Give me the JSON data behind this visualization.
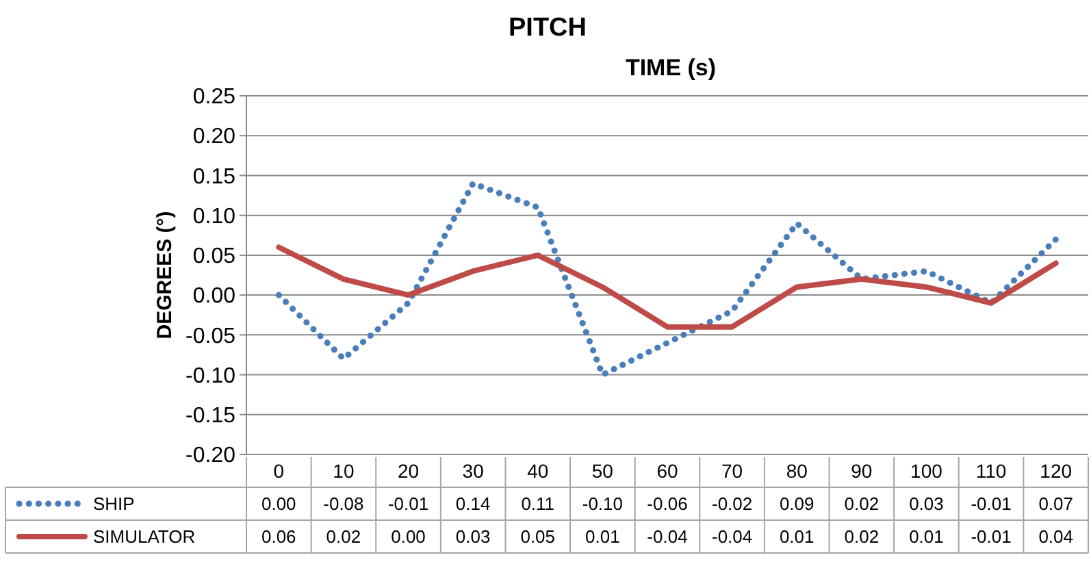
{
  "chart_data": {
    "type": "line",
    "title": "PITCH",
    "xlabel": "TIME (s)",
    "ylabel": "DEGREES (°)",
    "categories": [
      "0",
      "10",
      "20",
      "30",
      "40",
      "50",
      "60",
      "70",
      "80",
      "90",
      "100",
      "110",
      "120"
    ],
    "series": [
      {
        "name": "SHIP",
        "color": "#4a7ebb",
        "line_style": "dotted",
        "values": [
          0.0,
          -0.08,
          -0.01,
          0.14,
          0.11,
          -0.1,
          -0.06,
          -0.02,
          0.09,
          0.02,
          0.03,
          -0.01,
          0.07
        ],
        "value_labels": [
          "0.00",
          "-0.08",
          "-0.01",
          "0.14",
          "0.11",
          "-0.10",
          "-0.06",
          "-0.02",
          "0.09",
          "0.02",
          "0.03",
          "-0.01",
          "0.07"
        ]
      },
      {
        "name": "SIMULATOR",
        "color": "#be4b48",
        "line_style": "solid",
        "values": [
          0.06,
          0.02,
          0.0,
          0.03,
          0.05,
          0.01,
          -0.04,
          -0.04,
          0.01,
          0.02,
          0.01,
          -0.01,
          0.04
        ],
        "value_labels": [
          "0.06",
          "0.02",
          "0.00",
          "0.03",
          "0.05",
          "0.01",
          "-0.04",
          "-0.04",
          "0.01",
          "0.02",
          "0.01",
          "-0.01",
          "0.04"
        ]
      }
    ],
    "ylim": [
      -0.2,
      0.25
    ],
    "yticks": [
      {
        "value": -0.2,
        "label": "-0.20"
      },
      {
        "value": -0.15,
        "label": "-0.15"
      },
      {
        "value": -0.1,
        "label": "-0.10"
      },
      {
        "value": -0.05,
        "label": "-0.05"
      },
      {
        "value": 0,
        "label": "0.00"
      },
      {
        "value": 0.05,
        "label": "0.05"
      },
      {
        "value": 0.1,
        "label": "0.10"
      },
      {
        "value": 0.15,
        "label": "0.15"
      },
      {
        "value": 0.2,
        "label": "0.20"
      },
      {
        "value": 0.25,
        "label": "0.25"
      }
    ],
    "grid": "y",
    "legend": "bottom"
  }
}
